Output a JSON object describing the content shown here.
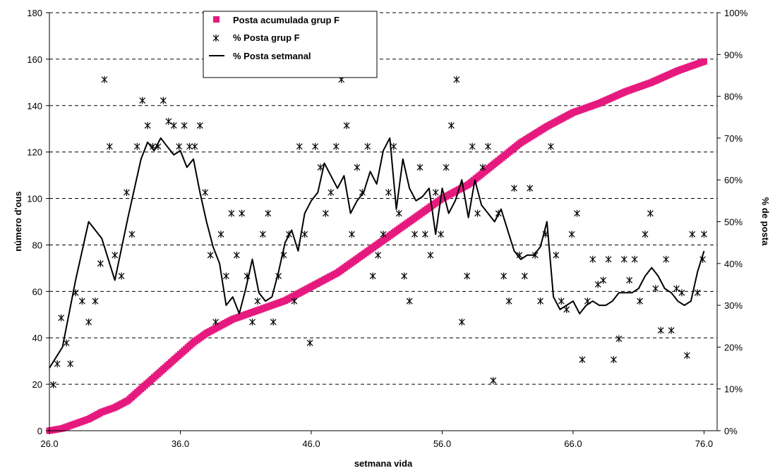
{
  "chart_data": {
    "type": "scatter",
    "xlabel": "setmana vida",
    "ylabel": "número d'ous",
    "y2label": "% de posta",
    "xlim": [
      26,
      77
    ],
    "ylim": [
      0,
      180
    ],
    "y2lim": [
      0,
      100
    ],
    "x_ticks": [
      "26.0",
      "36.0",
      "46.0",
      "56.0",
      "66.0",
      "76.0"
    ],
    "y_ticks": [
      "0",
      "20",
      "40",
      "60",
      "80",
      "100",
      "120",
      "140",
      "160",
      "180"
    ],
    "y2_ticks": [
      "0%",
      "10%",
      "20%",
      "30%",
      "40%",
      "50%",
      "60%",
      "70%",
      "80%",
      "90%",
      "100%"
    ],
    "grid": "horizontal dashed",
    "legend_position": "top-center",
    "colors": {
      "cumulative": "#e6197f",
      "scatter": "#000000",
      "weekly_line": "#000000"
    },
    "series": [
      {
        "name": "Posta acumulada grup F",
        "axis": "left",
        "marker": "square",
        "x": [
          26.0,
          27.0,
          28.0,
          29.0,
          30.0,
          31.0,
          32.0,
          33.0,
          34.0,
          35.0,
          36.0,
          37.0,
          38.0,
          39.0,
          40.0,
          41.0,
          42.0,
          43.0,
          44.0,
          45.0,
          46.0,
          48.0,
          50.0,
          52.0,
          54.0,
          56.0,
          58.0,
          60.0,
          62.0,
          64.0,
          66.0,
          68.0,
          70.0,
          72.0,
          74.0,
          76.0
        ],
        "values": [
          0,
          1,
          3,
          5,
          8,
          10,
          13,
          18,
          23,
          28,
          33,
          38,
          42,
          45,
          48,
          50,
          52,
          54,
          56,
          59,
          62,
          68,
          76,
          84,
          92,
          100,
          106,
          115,
          124,
          131,
          137,
          141,
          146,
          150,
          155,
          159
        ]
      },
      {
        "name": "% Posta grup F",
        "axis": "right",
        "marker": "asterisk",
        "x": [
          26.3,
          26.6,
          26.9,
          27.3,
          27.6,
          28.0,
          28.5,
          29.0,
          29.5,
          29.9,
          30.2,
          30.6,
          31.0,
          31.5,
          31.9,
          32.3,
          32.7,
          33.1,
          33.5,
          33.9,
          34.3,
          34.7,
          35.1,
          35.5,
          35.9,
          36.3,
          36.7,
          37.1,
          37.5,
          37.9,
          38.3,
          38.7,
          39.1,
          39.5,
          39.9,
          40.3,
          40.7,
          41.1,
          41.5,
          41.9,
          42.3,
          42.7,
          43.1,
          43.5,
          43.9,
          44.3,
          44.7,
          45.1,
          45.5,
          45.9,
          46.3,
          46.7,
          47.1,
          47.5,
          47.9,
          48.3,
          48.7,
          49.1,
          49.5,
          49.9,
          50.3,
          50.7,
          51.1,
          51.5,
          51.9,
          52.3,
          52.7,
          53.1,
          53.5,
          53.9,
          54.3,
          54.7,
          55.1,
          55.5,
          55.9,
          56.3,
          56.7,
          57.1,
          57.5,
          57.9,
          58.3,
          58.7,
          59.1,
          59.5,
          59.9,
          60.3,
          60.7,
          61.1,
          61.5,
          61.9,
          62.3,
          62.7,
          63.1,
          63.5,
          63.9,
          64.3,
          64.7,
          65.1,
          65.5,
          65.9,
          66.3,
          66.7,
          67.1,
          67.5,
          67.9,
          68.3,
          68.7,
          69.1,
          69.5,
          69.9,
          70.3,
          70.7,
          71.1,
          71.5,
          71.9,
          72.3,
          72.7,
          73.1,
          73.5,
          73.9,
          74.3,
          74.7,
          75.1,
          75.5,
          75.9,
          76.0
        ],
        "values": [
          11,
          16,
          27,
          21,
          16,
          33,
          31,
          26,
          31,
          40,
          84,
          68,
          42,
          37,
          57,
          47,
          68,
          79,
          73,
          68,
          68,
          79,
          74,
          73,
          68,
          73,
          68,
          68,
          73,
          57,
          42,
          26,
          47,
          37,
          52,
          42,
          52,
          37,
          26,
          31,
          47,
          52,
          26,
          37,
          42,
          47,
          31,
          68,
          47,
          21,
          68,
          63,
          52,
          57,
          68,
          84,
          73,
          47,
          63,
          57,
          68,
          37,
          42,
          47,
          57,
          68,
          52,
          37,
          31,
          47,
          63,
          47,
          42,
          57,
          47,
          63,
          73,
          84,
          26,
          37,
          68,
          52,
          63,
          68,
          12,
          52,
          37,
          31,
          58,
          42,
          37,
          58,
          42,
          31,
          47,
          68,
          42,
          31,
          29,
          47,
          52,
          17,
          31,
          41,
          35,
          36,
          41,
          17,
          22,
          41,
          36,
          41,
          31,
          47,
          52,
          34,
          24,
          41,
          24,
          34,
          33,
          18,
          47,
          33,
          41,
          47
        ]
      },
      {
        "name": "% Posta setmanal",
        "axis": "right",
        "marker": "line",
        "x": [
          26.0,
          27.0,
          28.0,
          29.0,
          30.0,
          31.0,
          32.0,
          33.0,
          33.5,
          34.0,
          34.5,
          35.0,
          35.5,
          36.0,
          36.5,
          37.0,
          37.5,
          38.0,
          38.5,
          39.0,
          39.5,
          40.0,
          40.5,
          41.0,
          41.5,
          42.0,
          42.5,
          43.0,
          43.5,
          44.0,
          44.5,
          45.0,
          45.5,
          46.0,
          46.5,
          47.0,
          47.5,
          48.0,
          48.5,
          49.0,
          49.5,
          50.0,
          50.5,
          51.0,
          51.5,
          52.0,
          52.5,
          53.0,
          53.5,
          54.0,
          54.5,
          55.0,
          55.5,
          56.0,
          56.5,
          57.0,
          57.5,
          58.0,
          58.5,
          59.0,
          59.5,
          60.0,
          60.5,
          61.0,
          61.5,
          62.0,
          62.5,
          63.0,
          63.5,
          64.0,
          64.5,
          65.0,
          65.5,
          66.0,
          66.5,
          67.0,
          67.5,
          68.0,
          68.5,
          69.0,
          69.5,
          70.0,
          70.5,
          71.0,
          71.5,
          72.0,
          72.5,
          73.0,
          73.5,
          74.0,
          74.5,
          75.0,
          75.5,
          76.0
        ],
        "values": [
          15,
          20,
          36,
          50,
          46,
          36,
          51,
          65,
          69,
          67,
          70,
          68,
          66,
          67,
          63,
          65,
          57,
          50,
          44,
          40,
          30,
          32,
          28,
          34,
          41,
          33,
          31,
          32,
          38,
          45,
          48,
          43,
          52,
          55,
          57,
          64,
          61,
          58,
          61,
          52,
          55,
          57,
          62,
          59,
          67,
          70,
          53,
          65,
          58,
          55,
          56,
          58,
          47,
          58,
          52,
          55,
          60,
          51,
          60,
          54,
          52,
          50,
          53,
          48,
          43,
          41,
          42,
          42,
          44,
          50,
          32,
          29,
          30,
          31,
          28,
          30,
          31,
          30,
          30,
          31,
          33,
          33,
          33,
          34,
          37,
          39,
          37,
          34,
          33,
          31,
          30,
          31,
          38,
          43
        ]
      }
    ]
  }
}
